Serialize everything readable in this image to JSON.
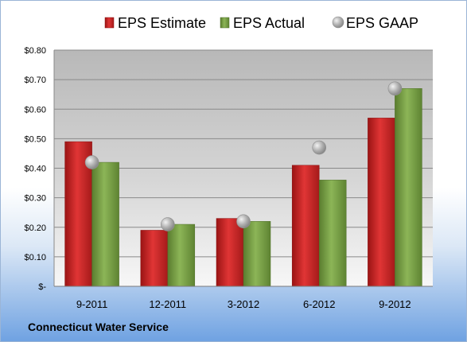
{
  "company": "Connecticut Water Service",
  "chart_data": {
    "type": "bar",
    "categories": [
      "9-2011",
      "12-2011",
      "3-2012",
      "6-2012",
      "9-2012"
    ],
    "series": [
      {
        "name": "EPS Estimate",
        "kind": "bar",
        "color": "#d62a2a",
        "values": [
          0.49,
          0.19,
          0.23,
          0.41,
          0.57
        ]
      },
      {
        "name": "EPS Actual",
        "kind": "bar",
        "color": "#7fa84a",
        "values": [
          0.42,
          0.21,
          0.22,
          0.36,
          0.67
        ]
      },
      {
        "name": "EPS GAAP",
        "kind": "marker",
        "color": "#b4b4b4",
        "values": [
          0.42,
          0.21,
          0.22,
          0.47,
          0.67
        ]
      }
    ],
    "yticks": [
      "$-",
      "$0.10",
      "$0.20",
      "$0.30",
      "$0.40",
      "$0.50",
      "$0.60",
      "$0.70",
      "$0.80"
    ],
    "ylim": [
      0,
      0.8
    ],
    "grid": true,
    "legend_position": "top"
  }
}
